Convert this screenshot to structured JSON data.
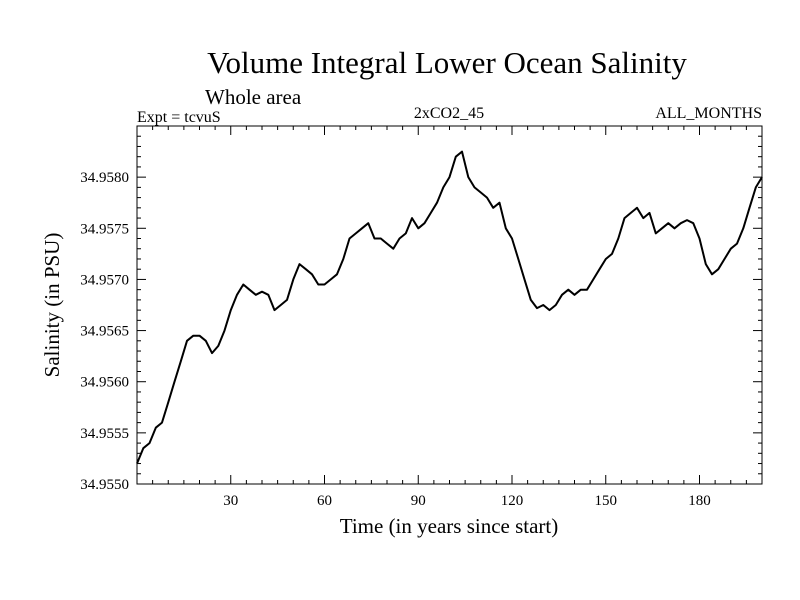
{
  "chart_data": {
    "type": "line",
    "title": "Volume Integral Lower Ocean Salinity",
    "subtitle": "Whole area",
    "annotations": {
      "left": "Expt = tcvuS",
      "center": "2xCO2_45",
      "right": "ALL_MONTHS"
    },
    "xlabel": "Time (in years since start)",
    "ylabel": "Salinity (in PSU)",
    "xlim": [
      0,
      200
    ],
    "ylim": [
      34.955,
      34.9585
    ],
    "xticks": [
      30,
      60,
      90,
      120,
      150,
      180
    ],
    "xtick_labels": [
      "30",
      "60",
      "90",
      "120",
      "150",
      "180"
    ],
    "yticks": [
      34.955,
      34.9555,
      34.956,
      34.9565,
      34.957,
      34.9575,
      34.958
    ],
    "ytick_labels": [
      "34.9550",
      "34.9555",
      "34.9560",
      "34.9565",
      "34.9570",
      "34.9575",
      "34.9580"
    ],
    "grid": false,
    "series": [
      {
        "color": "#000000",
        "x": [
          0,
          2,
          4,
          6,
          8,
          10,
          12,
          14,
          16,
          18,
          20,
          22,
          24,
          26,
          28,
          30,
          32,
          34,
          36,
          38,
          40,
          42,
          44,
          46,
          48,
          50,
          52,
          54,
          56,
          58,
          60,
          62,
          64,
          66,
          68,
          70,
          72,
          74,
          76,
          78,
          80,
          82,
          84,
          86,
          88,
          90,
          92,
          94,
          96,
          98,
          100,
          102,
          104,
          106,
          108,
          110,
          112,
          114,
          116,
          118,
          120,
          122,
          124,
          126,
          128,
          130,
          132,
          134,
          136,
          138,
          140,
          142,
          144,
          146,
          148,
          150,
          152,
          154,
          156,
          158,
          160,
          162,
          164,
          166,
          168,
          170,
          172,
          174,
          176,
          178,
          180,
          182,
          184,
          186,
          188,
          190,
          192,
          194,
          196,
          198,
          200
        ],
        "y": [
          34.9552,
          34.95535,
          34.9554,
          34.95555,
          34.9556,
          34.9558,
          34.956,
          34.9562,
          34.9564,
          34.95645,
          34.95645,
          34.9564,
          34.95628,
          34.95635,
          34.9565,
          34.9567,
          34.95685,
          34.95695,
          34.9569,
          34.95685,
          34.95688,
          34.95685,
          34.9567,
          34.95675,
          34.9568,
          34.957,
          34.95715,
          34.9571,
          34.95705,
          34.95695,
          34.95695,
          34.957,
          34.95705,
          34.9572,
          34.9574,
          34.95745,
          34.9575,
          34.95755,
          34.9574,
          34.9574,
          34.95735,
          34.9573,
          34.9574,
          34.95745,
          34.9576,
          34.9575,
          34.95755,
          34.95765,
          34.95775,
          34.9579,
          34.958,
          34.9582,
          34.95825,
          34.958,
          34.9579,
          34.95785,
          34.9578,
          34.9577,
          34.95775,
          34.9575,
          34.9574,
          34.9572,
          34.957,
          34.9568,
          34.95672,
          34.95675,
          34.9567,
          34.95675,
          34.95685,
          34.9569,
          34.95685,
          34.9569,
          34.9569,
          34.957,
          34.9571,
          34.9572,
          34.95725,
          34.9574,
          34.9576,
          34.95765,
          34.9577,
          34.9576,
          34.95765,
          34.95745,
          34.9575,
          34.95755,
          34.9575,
          34.95755,
          34.95758,
          34.95755,
          34.9574,
          34.95715,
          34.95705,
          34.9571,
          34.9572,
          34.9573,
          34.95735,
          34.9575,
          34.9577,
          34.9579,
          34.958
        ]
      }
    ]
  }
}
